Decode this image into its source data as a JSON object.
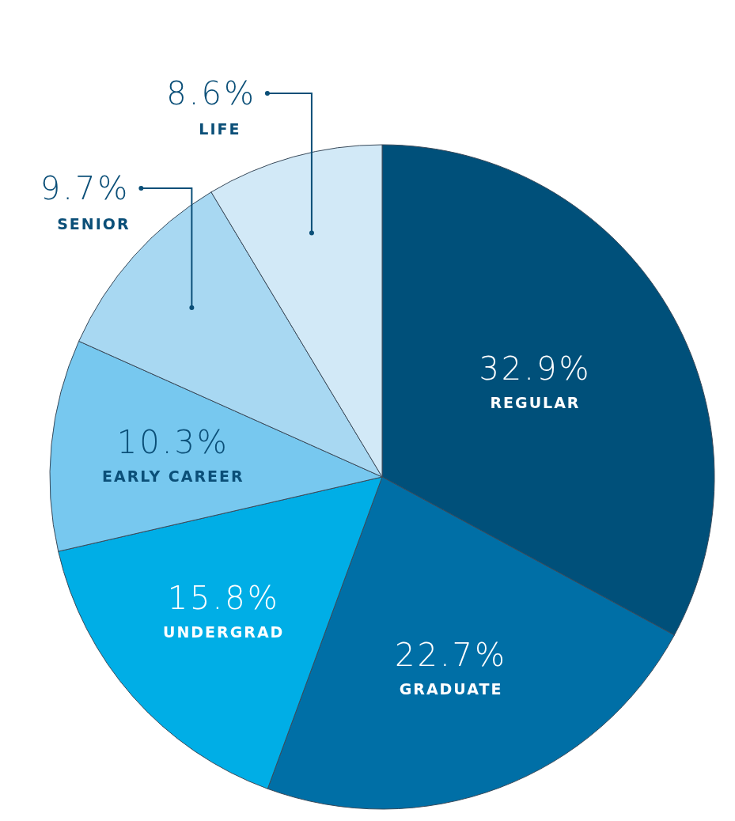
{
  "chart_data": {
    "type": "pie",
    "categories": [
      "REGULAR",
      "GRADUATE",
      "UNDERGRAD",
      "EARLY CAREER",
      "SENIOR",
      "LIFE"
    ],
    "values": [
      32.9,
      22.7,
      15.8,
      10.3,
      9.7,
      8.6
    ],
    "colors": [
      "#00507a",
      "#006fa6",
      "#00aee6",
      "#77c8ef",
      "#a8d8f2",
      "#d2e9f7"
    ],
    "value_labels": [
      "32.9%",
      "22.7%",
      "15.8%",
      "10.3%",
      "9.7%",
      "8.6%"
    ]
  }
}
